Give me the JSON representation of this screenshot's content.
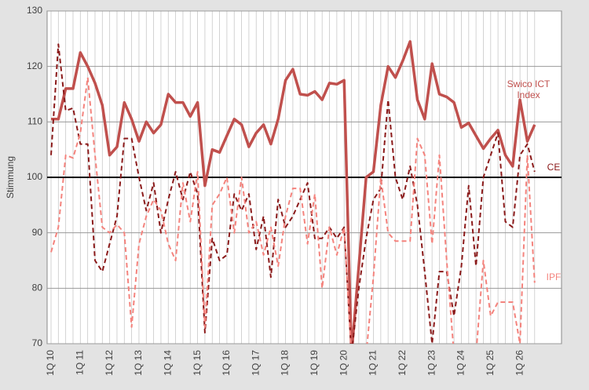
{
  "chart_data": {
    "type": "line",
    "y_label": "Stimmung",
    "categories": [
      "1Q 10",
      null,
      null,
      null,
      "1Q 11",
      null,
      null,
      null,
      "1Q 12",
      null,
      null,
      null,
      "1Q 13",
      null,
      null,
      null,
      "1Q 14",
      null,
      null,
      null,
      "1Q 15",
      null,
      null,
      null,
      "1Q 16",
      null,
      null,
      null,
      "1Q 17",
      null,
      null,
      null,
      "1Q 18",
      null,
      null,
      null,
      "1Q 19",
      null,
      null,
      null,
      "1Q 20",
      null,
      null,
      null,
      "1Q 21",
      null,
      null,
      null,
      "1Q 22",
      null,
      null,
      null,
      "1Q 23",
      null,
      null,
      null,
      "1Q 24",
      null,
      null,
      null,
      "1Q 25",
      null,
      null,
      null,
      "1Q 26",
      null,
      null
    ],
    "series": [
      {
        "name": "Swico ICT Index",
        "color": "#c0504d",
        "dash": false,
        "values": [
          110.5,
          110.5,
          116,
          116,
          122.5,
          120,
          117,
          113,
          104,
          105.5,
          113.5,
          110.5,
          106.5,
          110,
          108,
          109.5,
          115,
          113.5,
          113.5,
          111,
          113.5,
          98.5,
          105,
          104.5,
          107.5,
          110.5,
          109.5,
          105.5,
          108,
          109.5,
          106,
          110.5,
          117.5,
          119.5,
          115,
          114.8,
          115.5,
          114,
          117,
          116.8,
          117.5,
          68,
          84,
          100,
          101,
          113,
          120,
          118,
          121,
          124.5,
          114,
          110.5,
          120.5,
          115,
          114.5,
          113.5,
          109,
          109.8,
          107.5,
          105.2,
          107,
          108.5,
          104,
          102,
          114,
          106.5,
          109.5
        ]
      },
      {
        "name": "CE",
        "color": "#8b1a1a",
        "dash": true,
        "values": [
          104,
          124,
          112,
          112.5,
          106,
          106,
          85,
          83,
          88,
          93,
          107,
          107,
          100,
          94,
          99,
          90,
          96,
          101,
          96,
          101,
          97,
          72,
          89,
          85,
          86,
          97,
          94,
          97,
          87,
          93,
          82,
          96,
          91,
          93,
          96,
          99,
          89,
          89,
          91,
          89,
          91,
          68,
          80,
          89,
          96,
          98,
          114,
          100,
          96,
          102,
          95,
          83,
          70,
          83,
          83,
          75,
          84,
          98.5,
          84,
          100,
          104,
          108,
          92,
          91,
          104,
          106,
          101
        ]
      },
      {
        "name": "IPF",
        "color": "#f4837d",
        "dash": true,
        "values": [
          86.5,
          91,
          104,
          103.5,
          108,
          118,
          104,
          91,
          90,
          91.5,
          90,
          73,
          88,
          93,
          96,
          94,
          88,
          85,
          99,
          92,
          101,
          73,
          95,
          97,
          100,
          90,
          100,
          90,
          92,
          86,
          91,
          84,
          93,
          98,
          98,
          88,
          97,
          80,
          91,
          86,
          91,
          68,
          68,
          68,
          82,
          100,
          90,
          88.5,
          88.5,
          88.5,
          107,
          104,
          88,
          104,
          85,
          68,
          68,
          68,
          68,
          85,
          75,
          77.5,
          77.5,
          77.5,
          70,
          104,
          81
        ]
      }
    ],
    "ylim": [
      70,
      130
    ],
    "yticks": [
      70,
      80,
      90,
      100,
      110,
      120,
      130
    ],
    "grid": true,
    "reference_line": 100
  }
}
